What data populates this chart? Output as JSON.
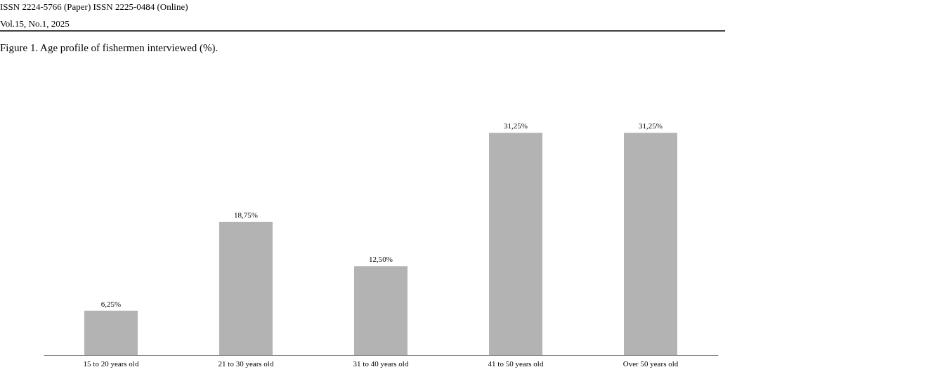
{
  "chart_data": {
    "type": "bar",
    "title": "Figure 1. Age profile of fishermen interviewed (%).",
    "categories": [
      "15 to 20 years old",
      "21 to 30 years old",
      "31 to 40 years old",
      "41 to 50 years old",
      "Over 50 years old"
    ],
    "values": [
      6.25,
      18.75,
      12.5,
      31.25,
      31.25
    ],
    "value_labels": [
      "6,25%",
      "18,75%",
      "12,50%",
      "31,25%",
      "31,25%"
    ],
    "color": "#b3b3b3",
    "annotations": [
      "ISSN 2224-5766 (Paper)   ISSN 2225-0484 (Online)",
      "Vol.15, No.1, 2025"
    ]
  }
}
